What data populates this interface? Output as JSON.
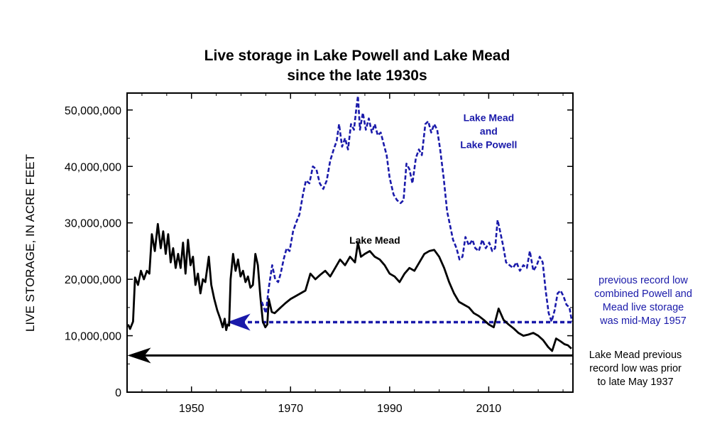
{
  "chart_data": {
    "type": "line",
    "title_lines": [
      "Live storage in Lake Powell and Lake Mead",
      "since the late 1930s"
    ],
    "ylabel": "LIVE STORAGE, IN ACRE FEET",
    "xlabel": "",
    "xlim": [
      1937,
      2027
    ],
    "ylim": [
      0,
      53000000
    ],
    "x_ticks": [
      1950,
      1970,
      1990,
      2010
    ],
    "x_tick_labels": [
      "1950",
      "1970",
      "1990",
      "2010"
    ],
    "y_ticks": [
      0,
      10000000,
      20000000,
      30000000,
      40000000,
      50000000
    ],
    "y_tick_labels": [
      "0",
      "10,000,000",
      "20,000,000",
      "30,000,000",
      "40,000,000",
      "50,000,000"
    ],
    "grid": false,
    "series": [
      {
        "name": "Lake Mead",
        "color": "#000000",
        "style": "solid",
        "points": [
          [
            1937.2,
            12000000
          ],
          [
            1937.6,
            11200000
          ],
          [
            1938.2,
            12500000
          ],
          [
            1938.6,
            20300000
          ],
          [
            1939.2,
            19000000
          ],
          [
            1939.8,
            21500000
          ],
          [
            1940.4,
            20000000
          ],
          [
            1941.0,
            21500000
          ],
          [
            1941.5,
            21000000
          ],
          [
            1942.0,
            28000000
          ],
          [
            1942.6,
            25000000
          ],
          [
            1943.2,
            29800000
          ],
          [
            1943.8,
            25500000
          ],
          [
            1944.3,
            28500000
          ],
          [
            1944.8,
            24500000
          ],
          [
            1945.3,
            28000000
          ],
          [
            1945.8,
            23000000
          ],
          [
            1946.3,
            25500000
          ],
          [
            1946.8,
            22000000
          ],
          [
            1947.3,
            24500000
          ],
          [
            1947.8,
            22000000
          ],
          [
            1948.3,
            26500000
          ],
          [
            1948.8,
            21000000
          ],
          [
            1949.3,
            27000000
          ],
          [
            1949.8,
            22500000
          ],
          [
            1950.3,
            24000000
          ],
          [
            1950.8,
            19000000
          ],
          [
            1951.3,
            21000000
          ],
          [
            1951.8,
            17500000
          ],
          [
            1952.3,
            20000000
          ],
          [
            1952.8,
            19500000
          ],
          [
            1953.5,
            24000000
          ],
          [
            1954.0,
            19000000
          ],
          [
            1954.6,
            16500000
          ],
          [
            1955.2,
            14500000
          ],
          [
            1955.8,
            13000000
          ],
          [
            1956.3,
            11500000
          ],
          [
            1956.7,
            13000000
          ],
          [
            1957.0,
            11000000
          ],
          [
            1957.3,
            12000000
          ],
          [
            1957.6,
            11800000
          ],
          [
            1957.9,
            20000000
          ],
          [
            1958.4,
            24500000
          ],
          [
            1958.9,
            21500000
          ],
          [
            1959.4,
            23500000
          ],
          [
            1959.9,
            20500000
          ],
          [
            1960.4,
            21500000
          ],
          [
            1960.9,
            19500000
          ],
          [
            1961.4,
            20500000
          ],
          [
            1961.9,
            18500000
          ],
          [
            1962.4,
            19000000
          ],
          [
            1962.9,
            24500000
          ],
          [
            1963.4,
            22500000
          ],
          [
            1963.9,
            17000000
          ],
          [
            1964.4,
            12500000
          ],
          [
            1964.9,
            11500000
          ],
          [
            1965.3,
            12000000
          ],
          [
            1965.6,
            16500000
          ],
          [
            1966.2,
            14200000
          ],
          [
            1966.8,
            14000000
          ],
          [
            1967.4,
            14500000
          ],
          [
            1968.0,
            15000000
          ],
          [
            1969.0,
            15800000
          ],
          [
            1970.0,
            16500000
          ],
          [
            1971.0,
            17000000
          ],
          [
            1972.0,
            17500000
          ],
          [
            1973.0,
            18000000
          ],
          [
            1974.0,
            21000000
          ],
          [
            1975.0,
            20000000
          ],
          [
            1976.0,
            20800000
          ],
          [
            1977.0,
            21500000
          ],
          [
            1978.0,
            20500000
          ],
          [
            1979.0,
            22000000
          ],
          [
            1980.0,
            23500000
          ],
          [
            1981.0,
            22500000
          ],
          [
            1982.0,
            24000000
          ],
          [
            1983.0,
            23000000
          ],
          [
            1983.6,
            26500000
          ],
          [
            1984.2,
            24000000
          ],
          [
            1985.0,
            24500000
          ],
          [
            1986.0,
            25000000
          ],
          [
            1987.0,
            24000000
          ],
          [
            1988.0,
            23500000
          ],
          [
            1989.0,
            22500000
          ],
          [
            1990.0,
            21000000
          ],
          [
            1991.0,
            20500000
          ],
          [
            1992.0,
            19500000
          ],
          [
            1993.0,
            21000000
          ],
          [
            1994.0,
            22000000
          ],
          [
            1995.0,
            21500000
          ],
          [
            1996.0,
            23000000
          ],
          [
            1997.0,
            24500000
          ],
          [
            1998.0,
            25000000
          ],
          [
            1999.0,
            25200000
          ],
          [
            2000.0,
            24000000
          ],
          [
            2001.0,
            22000000
          ],
          [
            2002.0,
            19500000
          ],
          [
            2003.0,
            17500000
          ],
          [
            2004.0,
            16000000
          ],
          [
            2005.0,
            15500000
          ],
          [
            2006.0,
            15000000
          ],
          [
            2007.0,
            14000000
          ],
          [
            2008.0,
            13500000
          ],
          [
            2009.0,
            12800000
          ],
          [
            2010.0,
            12000000
          ],
          [
            2011.0,
            11500000
          ],
          [
            2012.0,
            14800000
          ],
          [
            2013.0,
            12800000
          ],
          [
            2014.0,
            12000000
          ],
          [
            2015.0,
            11300000
          ],
          [
            2016.0,
            10500000
          ],
          [
            2017.0,
            10000000
          ],
          [
            2018.0,
            10200000
          ],
          [
            2019.0,
            10500000
          ],
          [
            2020.0,
            10000000
          ],
          [
            2021.0,
            9200000
          ],
          [
            2022.0,
            8000000
          ],
          [
            2022.8,
            7300000
          ],
          [
            2023.6,
            9500000
          ],
          [
            2024.5,
            9000000
          ],
          [
            2025.3,
            8500000
          ],
          [
            2026.0,
            8300000
          ],
          [
            2026.7,
            7700000
          ]
        ]
      },
      {
        "name": "Lake Mead and Lake Powell",
        "color": "#1a1aaa",
        "style": "dashed",
        "points": [
          [
            1964.2,
            16000000
          ],
          [
            1965.0,
            14000000
          ],
          [
            1965.6,
            18500000
          ],
          [
            1966.3,
            22500000
          ],
          [
            1966.9,
            20000000
          ],
          [
            1967.5,
            19500000
          ],
          [
            1968.0,
            21000000
          ],
          [
            1968.6,
            23500000
          ],
          [
            1969.2,
            25500000
          ],
          [
            1969.8,
            25000000
          ],
          [
            1970.5,
            28500000
          ],
          [
            1971.1,
            30000000
          ],
          [
            1971.8,
            31500000
          ],
          [
            1972.5,
            35000000
          ],
          [
            1973.1,
            37500000
          ],
          [
            1973.8,
            37000000
          ],
          [
            1974.5,
            40000000
          ],
          [
            1975.2,
            39500000
          ],
          [
            1975.9,
            37000000
          ],
          [
            1976.6,
            36000000
          ],
          [
            1977.3,
            37500000
          ],
          [
            1978.0,
            41000000
          ],
          [
            1978.7,
            43000000
          ],
          [
            1979.3,
            44500000
          ],
          [
            1979.8,
            47500000
          ],
          [
            1980.4,
            43500000
          ],
          [
            1981.0,
            45000000
          ],
          [
            1981.6,
            43000000
          ],
          [
            1982.2,
            47500000
          ],
          [
            1982.8,
            46500000
          ],
          [
            1983.3,
            50500000
          ],
          [
            1983.6,
            52500000
          ],
          [
            1984.0,
            46500000
          ],
          [
            1984.6,
            49500000
          ],
          [
            1985.2,
            46500000
          ],
          [
            1985.8,
            48500000
          ],
          [
            1986.4,
            46000000
          ],
          [
            1987.0,
            47500000
          ],
          [
            1987.6,
            45500000
          ],
          [
            1988.2,
            46000000
          ],
          [
            1988.8,
            44000000
          ],
          [
            1989.4,
            42000000
          ],
          [
            1990.0,
            38000000
          ],
          [
            1990.8,
            35000000
          ],
          [
            1991.5,
            34000000
          ],
          [
            1992.2,
            33500000
          ],
          [
            1992.8,
            34000000
          ],
          [
            1993.4,
            40500000
          ],
          [
            1994.0,
            39500000
          ],
          [
            1994.6,
            37000000
          ],
          [
            1995.3,
            41500000
          ],
          [
            1995.9,
            43000000
          ],
          [
            1996.5,
            42000000
          ],
          [
            1997.2,
            47500000
          ],
          [
            1997.8,
            48000000
          ],
          [
            1998.4,
            46000000
          ],
          [
            1999.0,
            47500000
          ],
          [
            1999.6,
            46500000
          ],
          [
            2000.2,
            43000000
          ],
          [
            2000.9,
            38000000
          ],
          [
            2001.6,
            32000000
          ],
          [
            2002.2,
            29500000
          ],
          [
            2002.8,
            27000000
          ],
          [
            2003.5,
            25500000
          ],
          [
            2004.1,
            23500000
          ],
          [
            2004.7,
            24000000
          ],
          [
            2005.3,
            27500000
          ],
          [
            2006.0,
            26000000
          ],
          [
            2006.7,
            27000000
          ],
          [
            2007.3,
            25500000
          ],
          [
            2008.0,
            25000000
          ],
          [
            2008.7,
            27000000
          ],
          [
            2009.4,
            25500000
          ],
          [
            2010.1,
            26500000
          ],
          [
            2010.7,
            25000000
          ],
          [
            2011.3,
            25500000
          ],
          [
            2011.8,
            30500000
          ],
          [
            2012.3,
            28500000
          ],
          [
            2012.9,
            26000000
          ],
          [
            2013.5,
            23000000
          ],
          [
            2014.2,
            22500000
          ],
          [
            2014.9,
            22000000
          ],
          [
            2015.6,
            23000000
          ],
          [
            2016.3,
            21500000
          ],
          [
            2017.0,
            22500000
          ],
          [
            2017.7,
            22000000
          ],
          [
            2018.3,
            25000000
          ],
          [
            2019.0,
            21500000
          ],
          [
            2019.7,
            22500000
          ],
          [
            2020.3,
            24000000
          ],
          [
            2020.9,
            23000000
          ],
          [
            2021.5,
            18000000
          ],
          [
            2022.1,
            14000000
          ],
          [
            2022.7,
            12500000
          ],
          [
            2023.3,
            14500000
          ],
          [
            2023.9,
            17500000
          ],
          [
            2024.5,
            18000000
          ],
          [
            2025.1,
            17000000
          ],
          [
            2025.7,
            15500000
          ],
          [
            2026.3,
            15000000
          ],
          [
            2026.8,
            12500000
          ]
        ]
      }
    ],
    "reference_lines": [
      {
        "name": "previous record low combined",
        "y": 12400000,
        "x_start": 1958.5,
        "x_end": 2027,
        "color": "#1a1aaa",
        "style": "dotted",
        "arrow_tip_x": 1957.4
      },
      {
        "name": "Lake Mead previous record low",
        "y": 6500000,
        "x_start": 1940.5,
        "x_end": 2027,
        "color": "#000000",
        "style": "solid",
        "arrow_tip_x": 1937.3
      }
    ],
    "series_labels": [
      {
        "lines": [
          "Lake Mead",
          "and",
          "Lake Powell"
        ],
        "x": 2010,
        "y": 48000000,
        "color": "#1a1aaa"
      },
      {
        "lines": [
          "Lake Mead"
        ],
        "x": 1987,
        "y": 26300000,
        "color": "#000000"
      }
    ],
    "annotations": [
      {
        "lines": [
          "previous record low",
          "combined Powell and",
          "Mead live storage",
          "was mid-May 1957"
        ],
        "color": "#1a1aaa"
      },
      {
        "lines": [
          "Lake Mead previous",
          "record low was prior",
          "to late May 1937"
        ],
        "color": "#000000"
      }
    ]
  }
}
